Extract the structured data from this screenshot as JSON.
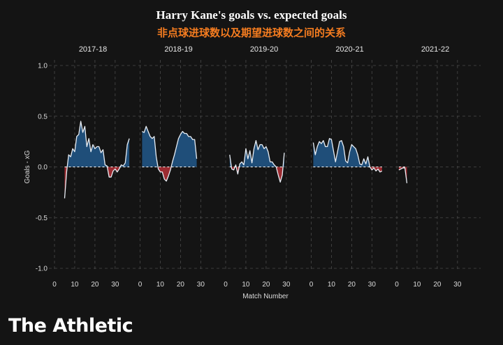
{
  "title": "Harry Kane's goals vs. expected goals",
  "subtitle": "非点球进球数以及期望进球数之间的关系",
  "brand": "The Athletic",
  "colors": {
    "positive": "#1f4e79",
    "negative": "#9c2b31",
    "line": "#e8eef5",
    "baseline": "#ffffff"
  },
  "chart_data": {
    "type": "area",
    "xlabel": "Match Number",
    "ylabel": "Goals - xG",
    "ylim": [
      -1.0,
      1.0
    ],
    "yticks": [
      "1.0",
      "0.5",
      "0.0",
      "-0.5",
      "-1.0"
    ],
    "ytick_values": [
      1.0,
      0.5,
      0.0,
      -0.5,
      -1.0
    ],
    "xlim": [
      0,
      38
    ],
    "xticks": [
      "0",
      "10",
      "20",
      "30"
    ],
    "xtick_values": [
      0,
      10,
      20,
      30
    ],
    "grid": true,
    "facets": [
      {
        "season": "2017-18",
        "x": [
          5,
          6,
          7,
          8,
          9,
          10,
          11,
          12,
          13,
          14,
          15,
          16,
          17,
          18,
          19,
          20,
          21,
          22,
          23,
          24,
          25,
          26,
          27,
          28,
          29,
          30,
          31,
          32,
          33,
          34,
          35,
          36,
          37
        ],
        "y": [
          -0.31,
          -0.05,
          0.12,
          0.1,
          0.18,
          0.15,
          0.3,
          0.32,
          0.45,
          0.34,
          0.4,
          0.2,
          0.28,
          0.15,
          0.22,
          0.18,
          0.2,
          0.2,
          0.14,
          0.17,
          0.02,
          0.01,
          -0.1,
          -0.1,
          -0.04,
          -0.02,
          -0.05,
          -0.02,
          0.02,
          0.01,
          0.04,
          0.22,
          0.28
        ]
      },
      {
        "season": "2018-19",
        "x": [
          1,
          2,
          3,
          4,
          5,
          6,
          7,
          8,
          9,
          10,
          11,
          12,
          13,
          14,
          15,
          16,
          17,
          18,
          19,
          20,
          21,
          22,
          23,
          24,
          25,
          26,
          27,
          28
        ],
        "y": [
          0.35,
          0.34,
          0.4,
          0.35,
          0.3,
          0.28,
          0.3,
          0.1,
          -0.02,
          -0.05,
          -0.05,
          -0.12,
          -0.14,
          -0.09,
          -0.03,
          0.05,
          0.12,
          0.2,
          0.28,
          0.32,
          0.35,
          0.33,
          0.33,
          0.3,
          0.3,
          0.27,
          0.27,
          0.08
        ]
      },
      {
        "season": "2019-20",
        "x": [
          2,
          3,
          4,
          5,
          6,
          7,
          8,
          9,
          10,
          11,
          12,
          13,
          14,
          15,
          16,
          17,
          18,
          19,
          20,
          21,
          22,
          23,
          24,
          25,
          26,
          27,
          28,
          29
        ],
        "y": [
          0.12,
          -0.02,
          -0.03,
          0.02,
          -0.07,
          0.03,
          0.05,
          0.02,
          0.18,
          0.08,
          0.16,
          0.04,
          0.18,
          0.26,
          0.17,
          0.22,
          0.22,
          0.18,
          0.2,
          0.15,
          0.05,
          0.05,
          0.02,
          0.0,
          -0.08,
          -0.15,
          -0.08,
          0.14
        ]
      },
      {
        "season": "2020-21",
        "x": [
          1,
          2,
          3,
          4,
          5,
          6,
          7,
          8,
          9,
          10,
          11,
          12,
          13,
          14,
          15,
          16,
          17,
          18,
          19,
          20,
          21,
          22,
          23,
          24,
          25,
          26,
          27,
          28,
          29,
          30,
          31,
          32,
          33,
          34,
          35
        ],
        "y": [
          0.24,
          0.12,
          0.2,
          0.25,
          0.23,
          0.26,
          0.2,
          0.2,
          0.28,
          0.27,
          0.16,
          0.05,
          0.15,
          0.25,
          0.26,
          0.2,
          0.06,
          0.04,
          0.15,
          0.22,
          0.2,
          0.18,
          0.12,
          0.03,
          0.02,
          0.08,
          0.03,
          0.1,
          0.0,
          -0.03,
          -0.01,
          -0.04,
          -0.02,
          -0.05,
          -0.04
        ]
      },
      {
        "season": "2021-22",
        "x": [
          1,
          2,
          3,
          4,
          5
        ],
        "y": [
          -0.03,
          -0.02,
          -0.01,
          -0.01,
          -0.16
        ]
      }
    ]
  }
}
